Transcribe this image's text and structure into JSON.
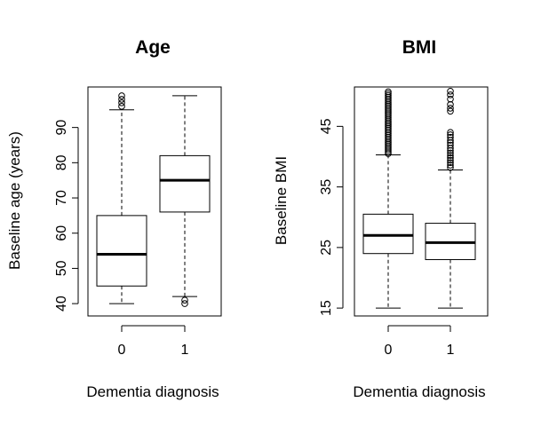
{
  "chart_data": [
    {
      "type": "boxplot",
      "title": "Age",
      "xlabel": "Dementia diagnosis",
      "ylabel": "Baseline age (years)",
      "categories": [
        "0",
        "1"
      ],
      "yticks": [
        40,
        50,
        60,
        70,
        80,
        90
      ],
      "ylim": [
        36.5,
        101.5
      ],
      "grid": false,
      "boxes": [
        {
          "category": "0",
          "whisker_low": 40,
          "q1": 45,
          "median": 54,
          "q3": 65,
          "whisker_high": 95,
          "outliers": [
            96,
            97,
            98,
            99
          ]
        },
        {
          "category": "1",
          "whisker_low": 42,
          "q1": 66,
          "median": 75,
          "q3": 82,
          "whisker_high": 99,
          "outliers": [
            40,
            41
          ]
        }
      ]
    },
    {
      "type": "boxplot",
      "title": "BMI",
      "xlabel": "Dementia diagnosis",
      "ylabel": "Baseline BMI",
      "categories": [
        "0",
        "1"
      ],
      "yticks": [
        15,
        25,
        35,
        45
      ],
      "ylim": [
        13.7,
        51.5
      ],
      "grid": false,
      "boxes": [
        {
          "category": "0",
          "whisker_low": 15,
          "q1": 24,
          "median": 27,
          "q3": 30.5,
          "whisker_high": 40.3,
          "outliers": [
            40.5,
            40.8,
            41.1,
            41.4,
            41.7,
            42.0,
            42.3,
            42.6,
            42.9,
            43.2,
            43.5,
            43.8,
            44.1,
            44.4,
            44.7,
            45.0,
            45.3,
            45.6,
            45.9,
            46.2,
            46.5,
            46.8,
            47.1,
            47.4,
            47.7,
            48.0,
            48.3,
            48.6,
            48.9,
            49.2,
            49.5,
            49.8,
            50.1,
            50.4,
            50.7
          ]
        },
        {
          "category": "1",
          "whisker_low": 15,
          "q1": 23,
          "median": 25.8,
          "q3": 29,
          "whisker_high": 37.8,
          "outliers": [
            38.2,
            38.6,
            39.0,
            39.4,
            39.8,
            40.2,
            40.6,
            41.0,
            41.4,
            41.9,
            42.3,
            42.7,
            43.2,
            43.6,
            44.0,
            47.5,
            48.0,
            48.6,
            49.5,
            50.2,
            50.8
          ]
        }
      ]
    }
  ]
}
